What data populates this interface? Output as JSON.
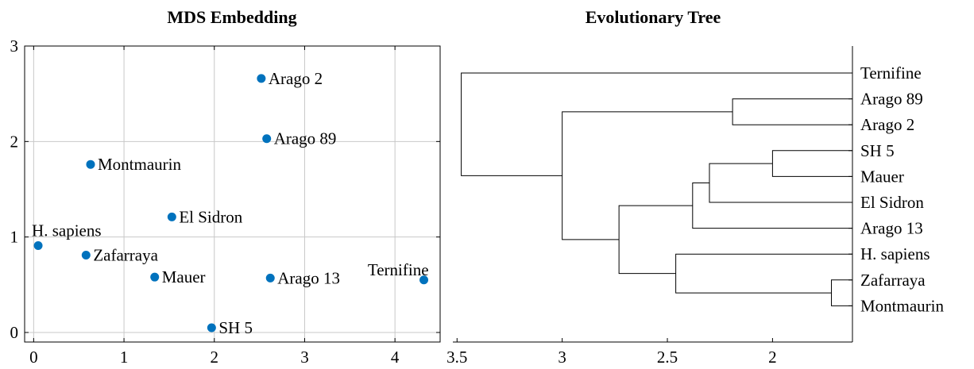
{
  "chart_data": [
    {
      "type": "scatter",
      "title": "MDS Embedding",
      "xlabel": "",
      "ylabel": "",
      "xlim": [
        -0.1,
        4.5
      ],
      "ylim": [
        -0.1,
        3.0
      ],
      "xticks": [
        0,
        1,
        2,
        3,
        4
      ],
      "yticks": [
        0,
        1,
        2,
        3
      ],
      "grid": true,
      "marker_color": "#0072bd",
      "points": [
        {
          "label": "Arago 2",
          "x": 2.52,
          "y": 2.66
        },
        {
          "label": "Arago 89",
          "x": 2.58,
          "y": 2.03
        },
        {
          "label": "Montmaurin",
          "x": 0.63,
          "y": 1.76
        },
        {
          "label": "El Sidron",
          "x": 1.53,
          "y": 1.21
        },
        {
          "label": "H. sapiens",
          "x": 0.05,
          "y": 0.91
        },
        {
          "label": "Zafarraya",
          "x": 0.58,
          "y": 0.81
        },
        {
          "label": "Mauer",
          "x": 1.34,
          "y": 0.58
        },
        {
          "label": "Arago 13",
          "x": 2.62,
          "y": 0.57
        },
        {
          "label": "Ternifine",
          "x": 4.32,
          "y": 0.55
        },
        {
          "label": "SH 5",
          "x": 1.97,
          "y": 0.05
        }
      ]
    },
    {
      "type": "dendrogram",
      "title": "Evolutionary Tree",
      "xlabel": "",
      "xlim": [
        3.52,
        1.62
      ],
      "xticks": [
        3.5,
        3,
        2.5,
        2
      ],
      "xtick_labels": [
        "3.5",
        "3",
        "2.5",
        "2"
      ],
      "leaves": [
        "Ternifine",
        "Arago 89",
        "Arago 2",
        "SH 5",
        "Mauer",
        "El Sidron",
        "Arago 13",
        "H. sapiens",
        "Zafarraya",
        "Montmaurin"
      ],
      "merges": [
        {
          "id": "n1",
          "children": [
            "Zafarraya",
            "Montmaurin"
          ],
          "height": 1.72
        },
        {
          "id": "n2",
          "children": [
            "SH 5",
            "Mauer"
          ],
          "height": 2.0
        },
        {
          "id": "n3",
          "children": [
            "Arago 89",
            "Arago 2"
          ],
          "height": 2.19
        },
        {
          "id": "n4",
          "children": [
            "n2",
            "El Sidron"
          ],
          "height": 2.3
        },
        {
          "id": "n5",
          "children": [
            "n4",
            "Arago 13"
          ],
          "height": 2.38
        },
        {
          "id": "n6",
          "children": [
            "H. sapiens",
            "n1"
          ],
          "height": 2.46
        },
        {
          "id": "n7",
          "children": [
            "n5",
            "n6"
          ],
          "height": 2.73
        },
        {
          "id": "n8",
          "children": [
            "n3",
            "n7"
          ],
          "height": 3.0
        },
        {
          "id": "n9",
          "children": [
            "Ternifine",
            "n8"
          ],
          "height": 3.48
        }
      ]
    }
  ]
}
